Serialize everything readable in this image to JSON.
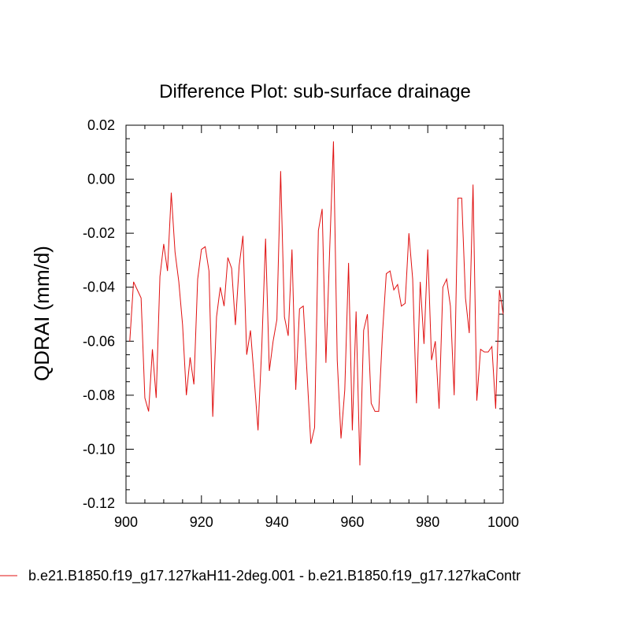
{
  "chart_data": {
    "type": "line",
    "title": "Difference Plot: sub-surface drainage",
    "xlabel": "",
    "ylabel": "QDRAI  (mm/d)",
    "xlim": [
      900,
      1000
    ],
    "ylim": [
      -0.12,
      0.02
    ],
    "xticks": [
      900,
      920,
      940,
      960,
      980,
      1000
    ],
    "yticks": [
      0.02,
      0.0,
      -0.02,
      -0.04,
      -0.06,
      -0.08,
      -0.1,
      -0.12
    ],
    "ytick_labels": [
      "0.02",
      "0.00",
      "-0.02",
      "-0.04",
      "-0.06",
      "-0.08",
      "-0.10",
      "-0.12"
    ],
    "legend_position": "bottom",
    "series": [
      {
        "name": "b.e21.B1850.f19_g17.127kaH11-2deg.001 - b.e21.B1850.f19_g17.127kaContr",
        "color": "#e01010",
        "x": [
          901,
          902,
          903,
          904,
          905,
          906,
          907,
          908,
          909,
          910,
          911,
          912,
          913,
          914,
          915,
          916,
          917,
          918,
          919,
          920,
          921,
          922,
          923,
          924,
          925,
          926,
          927,
          928,
          929,
          930,
          931,
          932,
          933,
          934,
          935,
          936,
          937,
          938,
          939,
          940,
          941,
          942,
          943,
          944,
          945,
          946,
          947,
          948,
          949,
          950,
          951,
          952,
          953,
          954,
          955,
          956,
          957,
          958,
          959,
          960,
          961,
          962,
          963,
          964,
          965,
          966,
          967,
          968,
          969,
          970,
          971,
          972,
          973,
          974,
          975,
          976,
          977,
          978,
          979,
          980,
          981,
          982,
          983,
          984,
          985,
          986,
          987,
          988,
          989,
          990,
          991,
          992,
          993,
          994,
          995,
          996,
          997,
          998,
          999,
          1000
        ],
        "y": [
          -0.06,
          -0.038,
          -0.041,
          -0.044,
          -0.081,
          -0.086,
          -0.063,
          -0.081,
          -0.036,
          -0.024,
          -0.034,
          -0.005,
          -0.027,
          -0.038,
          -0.054,
          -0.08,
          -0.066,
          -0.076,
          -0.037,
          -0.026,
          -0.025,
          -0.034,
          -0.088,
          -0.051,
          -0.04,
          -0.047,
          -0.029,
          -0.033,
          -0.054,
          -0.032,
          -0.021,
          -0.065,
          -0.056,
          -0.074,
          -0.093,
          -0.062,
          -0.022,
          -0.071,
          -0.06,
          -0.052,
          0.003,
          -0.051,
          -0.058,
          -0.026,
          -0.078,
          -0.048,
          -0.047,
          -0.072,
          -0.098,
          -0.092,
          -0.019,
          -0.011,
          -0.068,
          -0.026,
          0.014,
          -0.067,
          -0.096,
          -0.078,
          -0.031,
          -0.093,
          -0.049,
          -0.106,
          -0.056,
          -0.05,
          -0.083,
          -0.086,
          -0.086,
          -0.057,
          -0.035,
          -0.034,
          -0.041,
          -0.039,
          -0.047,
          -0.046,
          -0.02,
          -0.037,
          -0.083,
          -0.038,
          -0.061,
          -0.026,
          -0.067,
          -0.06,
          -0.085,
          -0.04,
          -0.037,
          -0.047,
          -0.08,
          -0.007,
          -0.007,
          -0.044,
          -0.057,
          -0.002,
          -0.082,
          -0.063,
          -0.064,
          -0.064,
          -0.062,
          -0.085,
          -0.041,
          -0.05
        ]
      }
    ]
  }
}
